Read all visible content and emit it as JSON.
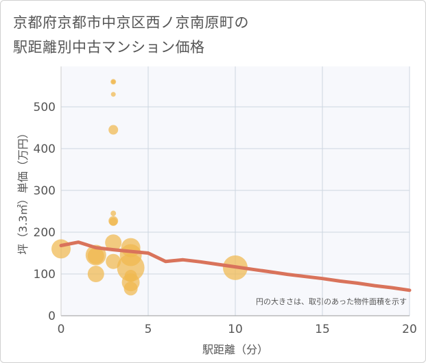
{
  "title_line1": "京都府京都市中京区西ノ京南原町の",
  "title_line2": "駅距離別中古マンション価格",
  "chart_data": {
    "type": "scatter",
    "title": "京都府京都市中京区西ノ京南原町の駅距離別中古マンション価格",
    "xlabel": "駅距離（分）",
    "ylabel": "坪（3.3㎡）単価（万円）",
    "xlim": [
      0,
      20
    ],
    "ylim": [
      0,
      580
    ],
    "x_ticks": [
      0,
      5,
      10,
      15,
      20
    ],
    "y_ticks": [
      0,
      100,
      200,
      300,
      400,
      500
    ],
    "grid": true,
    "note": "円の大きさは、取引のあった物件面積を示す",
    "colors": {
      "bubble": "#f0b94f",
      "trend": "#d9735b",
      "grid": "#ccd6e0",
      "plot_bg": "#f7f8fc"
    },
    "scatter": [
      {
        "x": 0,
        "y": 160,
        "size": 14
      },
      {
        "x": 2,
        "y": 145,
        "size": 15
      },
      {
        "x": 2,
        "y": 143,
        "size": 12
      },
      {
        "x": 2,
        "y": 100,
        "size": 12
      },
      {
        "x": 3,
        "y": 560,
        "size": 4
      },
      {
        "x": 3,
        "y": 560,
        "size": 3
      },
      {
        "x": 3,
        "y": 530,
        "size": 3.5
      },
      {
        "x": 3,
        "y": 445,
        "size": 7
      },
      {
        "x": 3,
        "y": 245,
        "size": 4
      },
      {
        "x": 3,
        "y": 227,
        "size": 7
      },
      {
        "x": 3,
        "y": 225,
        "size": 6
      },
      {
        "x": 3,
        "y": 175,
        "size": 12
      },
      {
        "x": 3,
        "y": 130,
        "size": 11
      },
      {
        "x": 4,
        "y": 163,
        "size": 14
      },
      {
        "x": 4,
        "y": 145,
        "size": 16
      },
      {
        "x": 4,
        "y": 115,
        "size": 20
      },
      {
        "x": 4,
        "y": 95,
        "size": 9
      },
      {
        "x": 4,
        "y": 80,
        "size": 13
      },
      {
        "x": 4,
        "y": 65,
        "size": 10
      },
      {
        "x": 10,
        "y": 115,
        "size": 18
      }
    ],
    "trend": {
      "x": [
        0,
        1,
        2,
        3,
        4,
        5,
        6,
        7,
        8,
        9,
        10,
        11,
        12,
        13,
        14,
        15,
        16,
        17,
        18,
        19,
        20
      ],
      "y": [
        168,
        176,
        163,
        158,
        154,
        150,
        130,
        134,
        129,
        123,
        117,
        111,
        105,
        99,
        94,
        89,
        83,
        78,
        72,
        67,
        61
      ]
    }
  }
}
